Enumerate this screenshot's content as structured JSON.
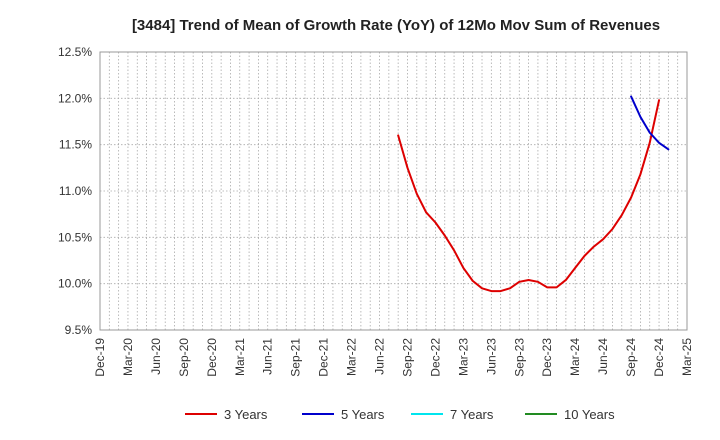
{
  "chart_data": {
    "type": "line",
    "title": "[3484]  Trend of Mean of Growth Rate (YoY) of 12Mo Mov Sum of Revenues",
    "xlabel": "",
    "ylabel": "",
    "ylim": [
      9.5,
      12.5
    ],
    "y_ticks": [
      "9.5%",
      "10.0%",
      "10.5%",
      "11.0%",
      "11.5%",
      "12.0%",
      "12.5%"
    ],
    "x_ticks": [
      "Dec-19",
      "Mar-20",
      "Jun-20",
      "Sep-20",
      "Dec-20",
      "Mar-21",
      "Jun-21",
      "Sep-21",
      "Dec-21",
      "Mar-22",
      "Jun-22",
      "Sep-22",
      "Dec-22",
      "Mar-23",
      "Jun-23",
      "Sep-23",
      "Dec-23",
      "Mar-24",
      "Jun-24",
      "Sep-24",
      "Dec-24",
      "Mar-25"
    ],
    "x_start": "2019-12",
    "x_months": 63,
    "series": [
      {
        "name": "3 Years",
        "color": "#dd0000",
        "start": "2022-08",
        "values": [
          11.6,
          11.25,
          10.97,
          10.77,
          10.66,
          10.52,
          10.36,
          10.17,
          10.03,
          9.95,
          9.92,
          9.92,
          9.95,
          10.02,
          10.04,
          10.02,
          9.96,
          9.96,
          10.04,
          10.17,
          10.3,
          10.4,
          10.48,
          10.59,
          10.74,
          10.93,
          11.18,
          11.52,
          11.98
        ]
      },
      {
        "name": "5 Years",
        "color": "#0000cc",
        "start": "2024-09",
        "values": [
          12.02,
          11.8,
          11.63,
          11.52,
          11.45
        ]
      },
      {
        "name": "7 Years",
        "color": "#00e5ee",
        "start": "2024-12",
        "values": []
      },
      {
        "name": "10 Years",
        "color": "#228b22",
        "start": "2024-12",
        "values": []
      }
    ]
  }
}
